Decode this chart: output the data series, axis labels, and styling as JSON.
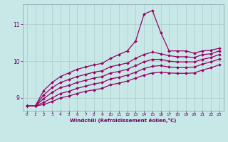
{
  "xlabel": "Windchill (Refroidissement éolien,°C)",
  "xlim": [
    -0.5,
    23.5
  ],
  "ylim": [
    8.65,
    11.55
  ],
  "yticks": [
    9,
    10,
    11
  ],
  "xticks": [
    0,
    1,
    2,
    3,
    4,
    5,
    6,
    7,
    8,
    9,
    10,
    11,
    12,
    13,
    14,
    15,
    16,
    17,
    18,
    19,
    20,
    21,
    22,
    23
  ],
  "bg_color": "#c8e8e8",
  "line_color": "#990066",
  "grid_color": "#aacccc",
  "series": [
    {
      "y": [
        8.78,
        8.78,
        9.2,
        9.42,
        9.58,
        9.68,
        9.78,
        9.84,
        9.9,
        9.94,
        10.08,
        10.18,
        10.28,
        10.55,
        11.28,
        11.38,
        10.78,
        10.28,
        10.28,
        10.28,
        10.22,
        10.28,
        10.3,
        10.35
      ],
      "marker": "D",
      "markersize": 2.0,
      "linewidth": 0.9
    },
    {
      "y": [
        8.78,
        8.78,
        9.08,
        9.28,
        9.42,
        9.5,
        9.58,
        9.64,
        9.7,
        9.74,
        9.85,
        9.9,
        9.95,
        10.08,
        10.18,
        10.25,
        10.2,
        10.15,
        10.12,
        10.12,
        10.1,
        10.18,
        10.2,
        10.28
      ],
      "marker": "D",
      "markersize": 2.0,
      "linewidth": 0.9
    },
    {
      "y": [
        8.78,
        8.78,
        8.98,
        9.15,
        9.28,
        9.34,
        9.42,
        9.48,
        9.54,
        9.58,
        9.68,
        9.72,
        9.78,
        9.88,
        9.98,
        10.05,
        10.05,
        10.0,
        9.98,
        9.98,
        9.98,
        10.05,
        10.1,
        10.18
      ],
      "marker": "D",
      "markersize": 2.0,
      "linewidth": 0.9
    },
    {
      "y": [
        8.78,
        8.78,
        8.88,
        9.0,
        9.12,
        9.18,
        9.26,
        9.32,
        9.38,
        9.42,
        9.52,
        9.56,
        9.62,
        9.7,
        9.8,
        9.86,
        9.88,
        9.84,
        9.83,
        9.83,
        9.84,
        9.92,
        9.98,
        10.06
      ],
      "marker": "D",
      "markersize": 2.0,
      "linewidth": 0.9
    },
    {
      "y": [
        8.78,
        8.78,
        8.82,
        8.9,
        9.0,
        9.05,
        9.12,
        9.18,
        9.22,
        9.26,
        9.36,
        9.4,
        9.46,
        9.54,
        9.62,
        9.68,
        9.7,
        9.68,
        9.67,
        9.67,
        9.68,
        9.76,
        9.82,
        9.9
      ],
      "marker": "D",
      "markersize": 2.0,
      "linewidth": 0.9
    }
  ]
}
